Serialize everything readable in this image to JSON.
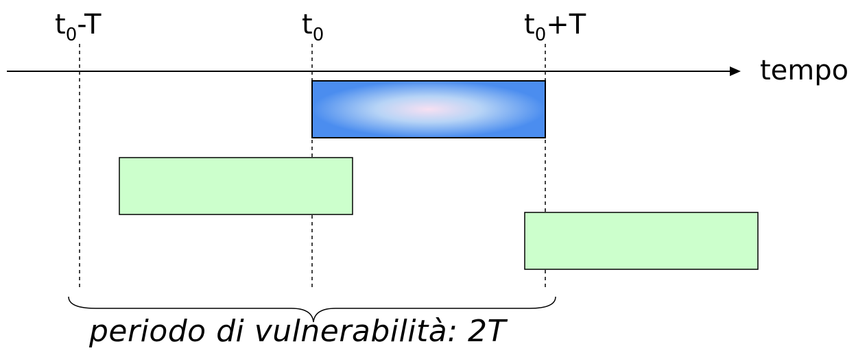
{
  "labels": {
    "t0_minus_T": {
      "base": "t",
      "sub": "0",
      "suffix": "-T"
    },
    "t0": {
      "base": "t",
      "sub": "0",
      "suffix": ""
    },
    "t0_plus_T": {
      "base": "t",
      "sub": "0",
      "suffix": "+T"
    },
    "axis": "tempo",
    "period": "periodo di vulnerabilità: 2T"
  },
  "colors": {
    "main_frame_fill_edge": "#4d8fef",
    "main_frame_fill_center": "#f6e2f2",
    "other_frame_fill": "#ccffcc",
    "line": "#000000"
  }
}
